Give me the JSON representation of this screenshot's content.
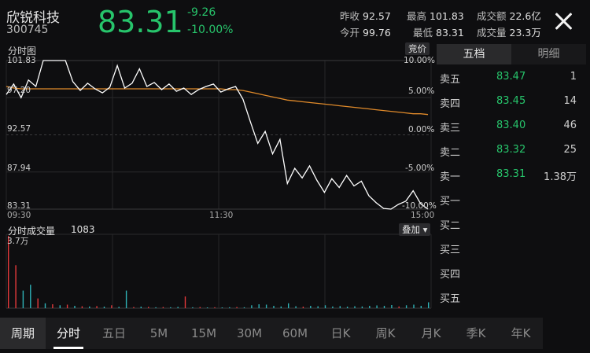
{
  "header": {
    "name": "欣锐科技",
    "code": "300745",
    "price": "83.31",
    "change": "-9.26",
    "change_pct": "-10.00%",
    "stats": [
      {
        "label": "昨收",
        "value": "92.57"
      },
      {
        "label": "最高",
        "value": "101.83"
      },
      {
        "label": "成交额",
        "value": "22.6亿"
      },
      {
        "label": "今开",
        "value": "99.76"
      },
      {
        "label": "最低",
        "value": "83.31"
      },
      {
        "label": "成交量",
        "value": "23.3万"
      }
    ]
  },
  "chart": {
    "title": "分时图",
    "auction_btn": "竞价",
    "y_left": [
      "101.83",
      "97.20",
      "92.57",
      "87.94",
      "83.31"
    ],
    "y_right": [
      "10.00%",
      "5.00%",
      "0.00%",
      "-5.00%",
      "-10.00%"
    ],
    "x_labels": [
      "09:30",
      "11:30",
      "15:00"
    ],
    "volume_title": "分时成交量",
    "volume_value": "1083",
    "volume_max": "3.7万",
    "overlay_btn": "叠加"
  },
  "chart_data": {
    "type": "line",
    "x_range": [
      "09:30",
      "15:00"
    ],
    "ylim": [
      83.31,
      101.83
    ],
    "series": [
      {
        "values": [
          97.6,
          98.9,
          97.2,
          99.4,
          98.6,
          101.83,
          101.83,
          101.83,
          101.83,
          99.2,
          98.1,
          99.0,
          98.3,
          97.8,
          98.5,
          101.2,
          98.4,
          99.0,
          100.8,
          98.6,
          99.1,
          98.2,
          98.9,
          98.0,
          98.4,
          97.6,
          98.2,
          98.6,
          98.9,
          97.9,
          98.3,
          98.6,
          97.0,
          94.2,
          91.5,
          93.0,
          90.2,
          92.0,
          86.5,
          88.4,
          87.2,
          88.7,
          86.9,
          85.4,
          87.1,
          86.0,
          87.5,
          86.2,
          86.8,
          85.0,
          84.1,
          83.4,
          83.31,
          83.9,
          84.3,
          85.6,
          84.0,
          83.31
        ]
      },
      {
        "values": [
          98.6,
          98.4,
          98.3,
          98.3,
          98.3,
          98.3,
          98.3,
          98.3,
          98.3,
          98.3,
          98.3,
          98.3,
          98.3,
          98.3,
          98.3,
          98.3,
          98.3,
          98.3,
          98.3,
          98.3,
          98.3,
          98.3,
          98.3,
          98.3,
          98.3,
          98.3,
          98.3,
          98.3,
          98.3,
          98.3,
          98.2,
          98.2,
          98.1,
          97.9,
          97.7,
          97.5,
          97.3,
          97.1,
          96.9,
          96.8,
          96.7,
          96.6,
          96.5,
          96.4,
          96.3,
          96.2,
          96.1,
          96.0,
          95.9,
          95.8,
          95.7,
          95.6,
          95.5,
          95.4,
          95.3,
          95.2,
          95.2,
          95.1
        ]
      }
    ],
    "volume": [
      {
        "v": 37000,
        "c": "red"
      },
      {
        "v": 22000,
        "c": "red"
      },
      {
        "v": 9000,
        "c": "teal"
      },
      {
        "v": 12000,
        "c": "teal"
      },
      {
        "v": 5000,
        "c": "red"
      },
      {
        "v": 2500,
        "c": "teal"
      },
      {
        "v": 2000,
        "c": "red"
      },
      {
        "v": 1500,
        "c": "teal"
      },
      {
        "v": 1800,
        "c": "red"
      },
      {
        "v": 1200,
        "c": "teal"
      },
      {
        "v": 1000,
        "c": "red"
      },
      {
        "v": 900,
        "c": "teal"
      },
      {
        "v": 1100,
        "c": "red"
      },
      {
        "v": 800,
        "c": "teal"
      },
      {
        "v": 1500,
        "c": "red"
      },
      {
        "v": 700,
        "c": "teal"
      },
      {
        "v": 9000,
        "c": "teal"
      },
      {
        "v": 600,
        "c": "red"
      },
      {
        "v": 800,
        "c": "teal"
      },
      {
        "v": 700,
        "c": "red"
      },
      {
        "v": 500,
        "c": "teal"
      },
      {
        "v": 600,
        "c": "red"
      },
      {
        "v": 500,
        "c": "teal"
      },
      {
        "v": 700,
        "c": "teal"
      },
      {
        "v": 6000,
        "c": "red"
      },
      {
        "v": 500,
        "c": "teal"
      },
      {
        "v": 600,
        "c": "red"
      },
      {
        "v": 400,
        "c": "teal"
      },
      {
        "v": 500,
        "c": "red"
      },
      {
        "v": 400,
        "c": "teal"
      },
      {
        "v": 500,
        "c": "teal"
      },
      {
        "v": 600,
        "c": "red"
      },
      {
        "v": 500,
        "c": "teal"
      },
      {
        "v": 1500,
        "c": "teal"
      },
      {
        "v": 2000,
        "c": "teal"
      },
      {
        "v": 1800,
        "c": "teal"
      },
      {
        "v": 1200,
        "c": "teal"
      },
      {
        "v": 900,
        "c": "teal"
      },
      {
        "v": 2500,
        "c": "teal"
      },
      {
        "v": 1000,
        "c": "teal"
      },
      {
        "v": 800,
        "c": "red"
      },
      {
        "v": 1200,
        "c": "teal"
      },
      {
        "v": 1000,
        "c": "teal"
      },
      {
        "v": 1500,
        "c": "teal"
      },
      {
        "v": 900,
        "c": "teal"
      },
      {
        "v": 1100,
        "c": "teal"
      },
      {
        "v": 800,
        "c": "teal"
      },
      {
        "v": 1000,
        "c": "teal"
      },
      {
        "v": 900,
        "c": "teal"
      },
      {
        "v": 1200,
        "c": "teal"
      },
      {
        "v": 1400,
        "c": "teal"
      },
      {
        "v": 1200,
        "c": "teal"
      },
      {
        "v": 1600,
        "c": "teal"
      },
      {
        "v": 900,
        "c": "red"
      },
      {
        "v": 1500,
        "c": "teal"
      },
      {
        "v": 1800,
        "c": "teal"
      },
      {
        "v": 1200,
        "c": "teal"
      },
      {
        "v": 3000,
        "c": "teal"
      }
    ]
  },
  "orderbook": {
    "tabs": [
      "五档",
      "明细"
    ],
    "rows": [
      {
        "label": "卖五",
        "price": "83.47",
        "vol": "1"
      },
      {
        "label": "卖四",
        "price": "83.45",
        "vol": "14"
      },
      {
        "label": "卖三",
        "price": "83.40",
        "vol": "46"
      },
      {
        "label": "卖二",
        "price": "83.32",
        "vol": "25"
      },
      {
        "label": "卖一",
        "price": "83.31",
        "vol": "1.38万"
      },
      {
        "label": "买一",
        "price": "",
        "vol": ""
      },
      {
        "label": "买二",
        "price": "",
        "vol": ""
      },
      {
        "label": "买三",
        "price": "",
        "vol": ""
      },
      {
        "label": "买四",
        "price": "",
        "vol": ""
      },
      {
        "label": "买五",
        "price": "",
        "vol": ""
      }
    ]
  },
  "periods": [
    "周期",
    "分时",
    "五日",
    "5M",
    "15M",
    "30M",
    "60M",
    "日K",
    "周K",
    "月K",
    "季K",
    "年K"
  ],
  "colors": {
    "up": "#e5393b",
    "down": "#27c46b",
    "avg": "#e08a2a",
    "price_line": "#ffffff",
    "vol_teal": "#2fb3b8"
  }
}
